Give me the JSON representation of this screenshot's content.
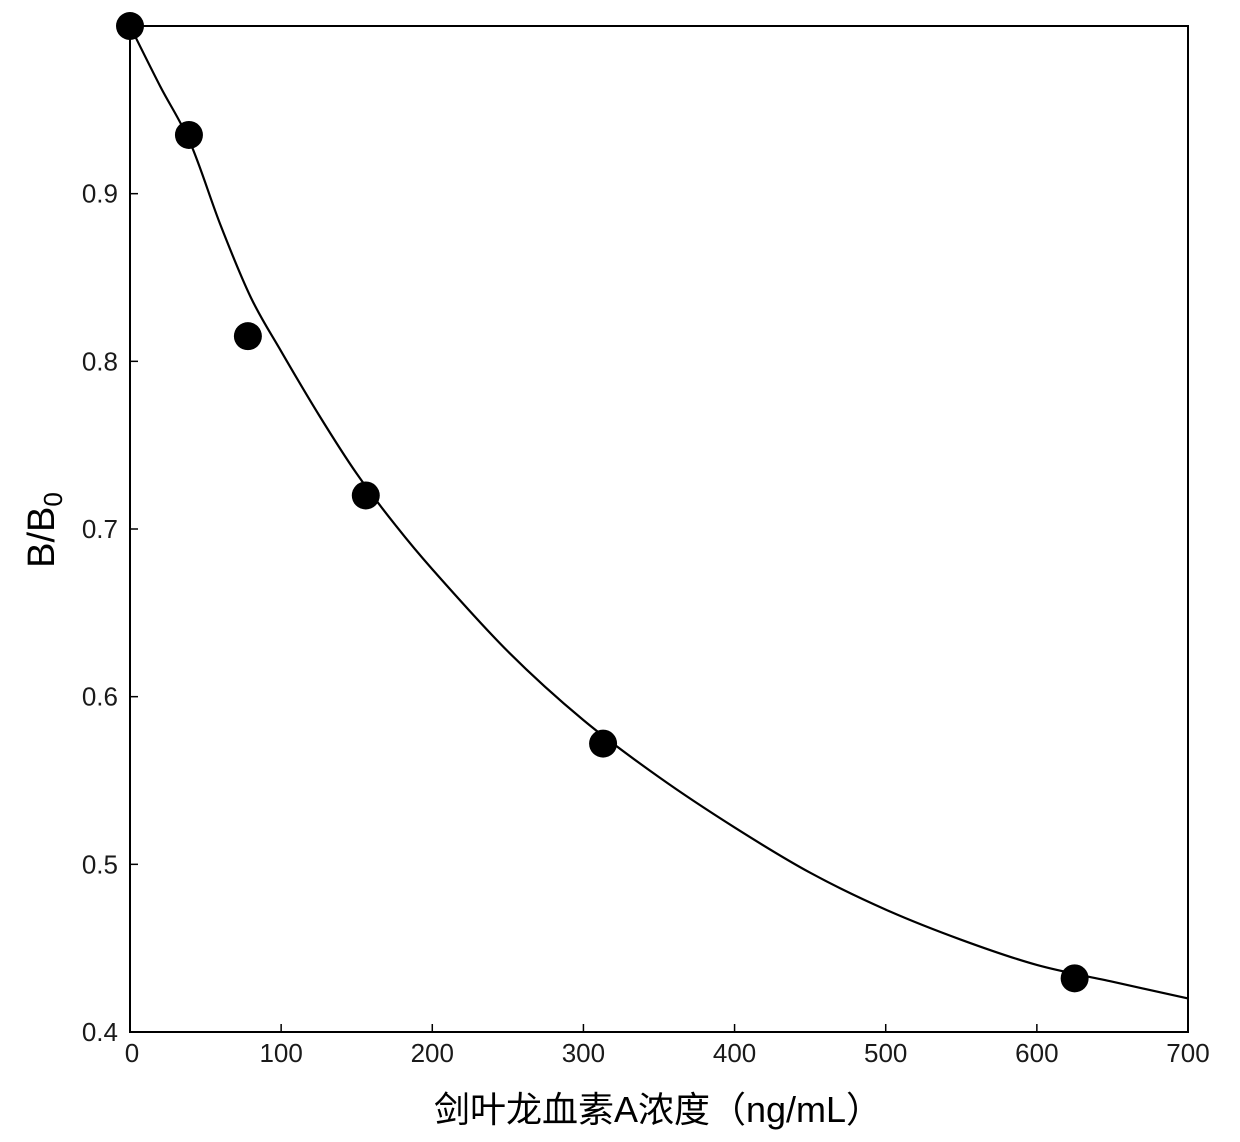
{
  "chart_data": {
    "type": "scatter",
    "xlabel": "剑叶龙血素A浓度（ng/mL）",
    "ylabel": "B/B",
    "ylabel_subscript": "0",
    "xlim": [
      0,
      700
    ],
    "ylim": [
      0.4,
      1.0
    ],
    "x_ticks": [
      0,
      100,
      200,
      300,
      400,
      500,
      600,
      700
    ],
    "y_ticks": [
      0.4,
      0.5,
      0.6,
      0.7,
      0.8,
      0.9
    ],
    "x_tick_labels": [
      "0",
      "100",
      "200",
      "300",
      "400",
      "500",
      "600",
      "700"
    ],
    "y_tick_labels": [
      "0.4",
      "0.5",
      "0.6",
      "0.7",
      "0.8",
      "0.9"
    ],
    "grid": false,
    "series": [
      {
        "kind": "points",
        "x": [
          0,
          39,
          78,
          156,
          313,
          625
        ],
        "y": [
          1.0,
          0.935,
          0.815,
          0.72,
          0.572,
          0.432
        ]
      },
      {
        "kind": "fitted-curve",
        "x": [
          0,
          20,
          40,
          60,
          80,
          100,
          125,
          150,
          175,
          200,
          250,
          300,
          350,
          400,
          450,
          500,
          550,
          600,
          650,
          700
        ],
        "y": [
          1.0,
          0.964,
          0.93,
          0.881,
          0.838,
          0.806,
          0.768,
          0.733,
          0.703,
          0.676,
          0.627,
          0.586,
          0.552,
          0.522,
          0.495,
          0.473,
          0.455,
          0.44,
          0.43,
          0.42
        ]
      }
    ],
    "colors": {
      "points": "#000000",
      "curve": "#000000",
      "axes": "#000000"
    }
  }
}
